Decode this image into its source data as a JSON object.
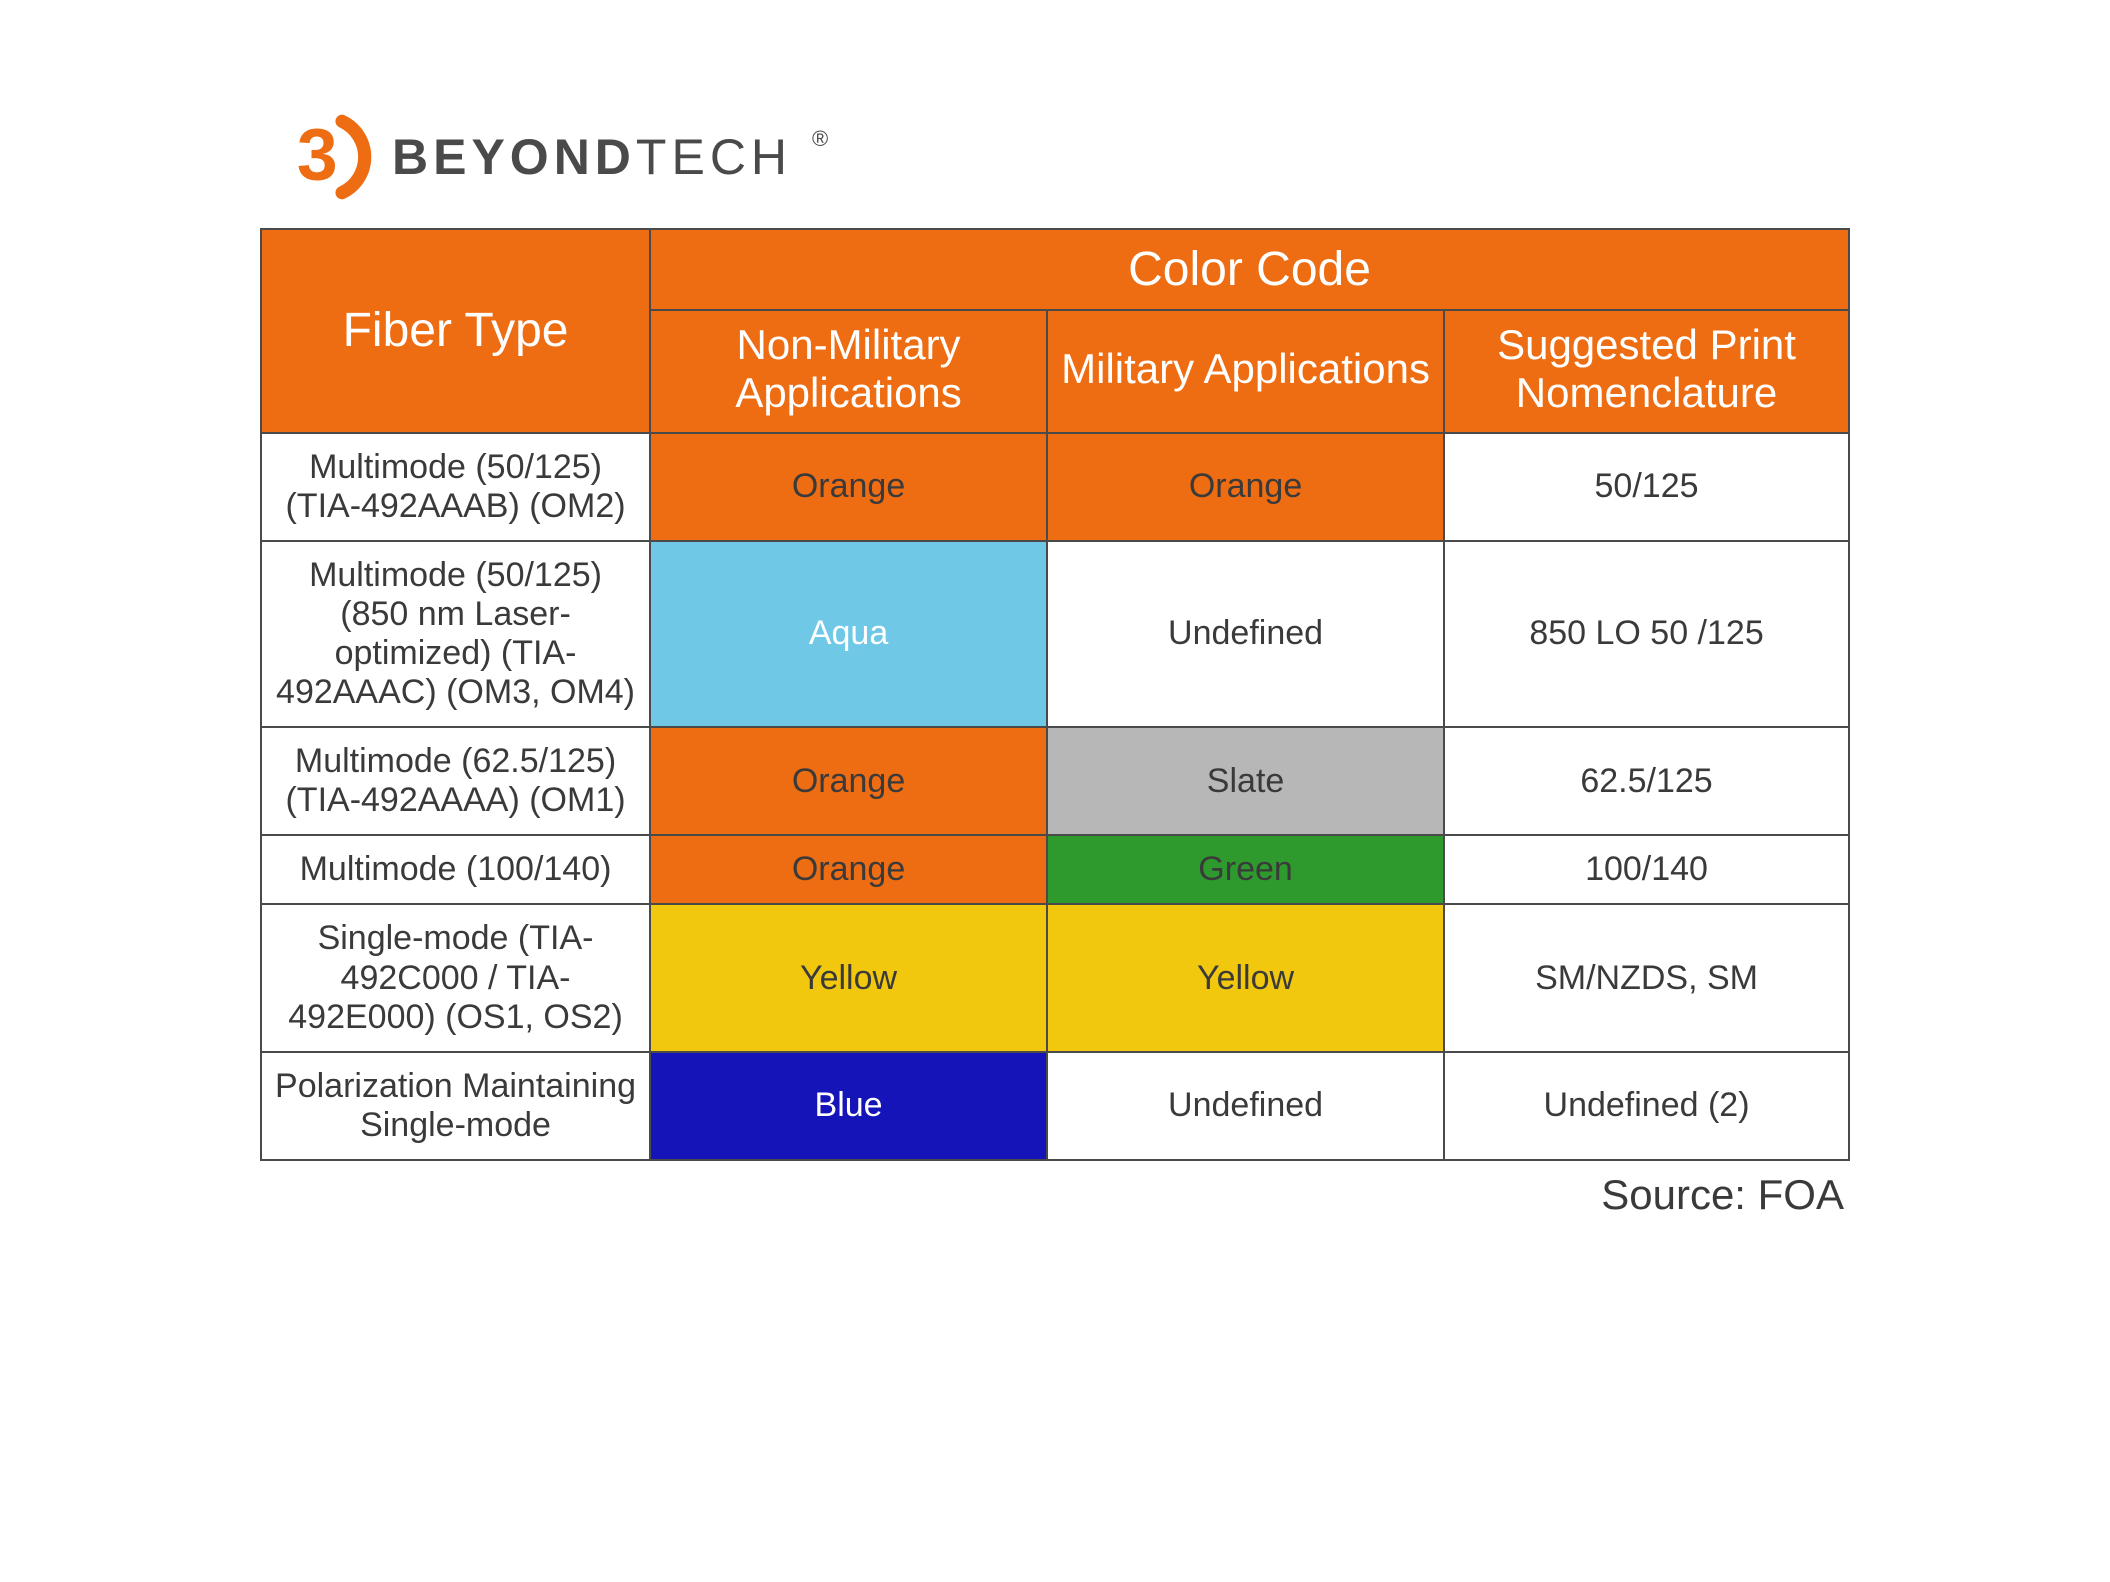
{
  "brand": {
    "name_bold": "BEYOND",
    "name_light": "TECH",
    "logo_color": "#ee6c12",
    "text_color": "#4a4a4a"
  },
  "table": {
    "header": {
      "fiber_type": "Fiber Type",
      "color_code": "Color Code",
      "non_military": "Non-Military Applications",
      "military": "Military Applications",
      "nomenclature": "Suggested Print Nomenclature",
      "bg": "#ee6c12",
      "fg": "#ffffff",
      "border_color": "#4a4a4a",
      "fiber_fontsize": 48,
      "colorcode_fontsize": 48,
      "sub_fontsize": 42
    },
    "body_fontsize": 34,
    "body_text_color": "#3a3a3a",
    "column_widths_pct": [
      24.5,
      25,
      25,
      25.5
    ],
    "rows": [
      {
        "fiber": "Multimode (50/125) (TIA-492AAAB) (OM2)",
        "non_military": {
          "label": "Orange",
          "bg": "#ee6c12",
          "fg": "#3a3a3a"
        },
        "military": {
          "label": "Orange",
          "bg": "#ee6c12",
          "fg": "#3a3a3a"
        },
        "nomenclature": "50/125"
      },
      {
        "fiber": "Multimode (50/125) (850 nm Laser-optimized) (TIA-492AAAC) (OM3, OM4)",
        "non_military": {
          "label": "Aqua",
          "bg": "#6fc8e6",
          "fg": "#ffffff"
        },
        "military": {
          "label": "Undefined",
          "bg": "#ffffff",
          "fg": "#3a3a3a"
        },
        "nomenclature": "850 LO 50 /125"
      },
      {
        "fiber": "Multimode (62.5/125) (TIA-492AAAA) (OM1)",
        "non_military": {
          "label": "Orange",
          "bg": "#ee6c12",
          "fg": "#3a3a3a"
        },
        "military": {
          "label": "Slate",
          "bg": "#b7b7b7",
          "fg": "#3a3a3a"
        },
        "nomenclature": "62.5/125"
      },
      {
        "fiber": "Multimode (100/140)",
        "non_military": {
          "label": "Orange",
          "bg": "#ee6c12",
          "fg": "#3a3a3a"
        },
        "military": {
          "label": "Green",
          "bg": "#2e9a2e",
          "fg": "#3a3a3a"
        },
        "nomenclature": "100/140"
      },
      {
        "fiber": "Single-mode (TIA-492C000 / TIA-492E000) (OS1, OS2)",
        "non_military": {
          "label": "Yellow",
          "bg": "#f2c80f",
          "fg": "#3a3a3a"
        },
        "military": {
          "label": "Yellow",
          "bg": "#f2c80f",
          "fg": "#3a3a3a"
        },
        "nomenclature": "SM/NZDS, SM"
      },
      {
        "fiber": "Polarization Maintaining Single-mode",
        "non_military": {
          "label": "Blue",
          "bg": "#1414b8",
          "fg": "#ffffff"
        },
        "military": {
          "label": "Undefined",
          "bg": "#ffffff",
          "fg": "#3a3a3a"
        },
        "nomenclature": "Undefined (2)"
      }
    ]
  },
  "source_label": "Source: FOA"
}
